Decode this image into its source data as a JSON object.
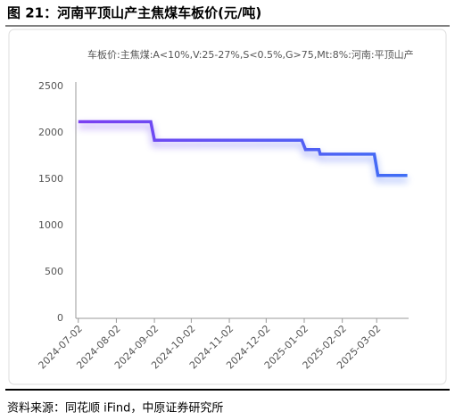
{
  "chart_data": {
    "type": "line",
    "title": "图 21：河南平顶山产主焦煤车板价(元/吨)",
    "source": "资料来源：同花顺 iFind，中原证券研究所",
    "x": [
      "2024-07-02",
      "2024-08-30",
      "2024-09-02",
      "2024-12-31",
      "2025-01-03",
      "2025-01-14",
      "2025-01-15",
      "2025-02-28",
      "2025-03-03",
      "2025-03-27"
    ],
    "series": [
      {
        "name": "车板价:主焦煤:A<10%,V:25-27%,S<0.5%,G>75,Mt:8%:河南:平顶山产",
        "colors": [
          "#7b3ff2",
          "#3f6ef5"
        ],
        "values": [
          2120,
          2120,
          1920,
          1920,
          1820,
          1820,
          1770,
          1770,
          1540,
          1540
        ]
      }
    ],
    "xlim": [
      "2024-06-30",
      "2025-03-28"
    ],
    "xticks": [
      "2024-07-02",
      "2024-08-02",
      "2024-09-02",
      "2024-10-02",
      "2024-11-02",
      "2024-12-02",
      "2025-01-02",
      "2025-02-02",
      "2025-03-02"
    ],
    "ylim": [
      0,
      2500
    ],
    "yticks": [
      0,
      500,
      1000,
      1500,
      2000,
      2500
    ],
    "grid": false
  }
}
